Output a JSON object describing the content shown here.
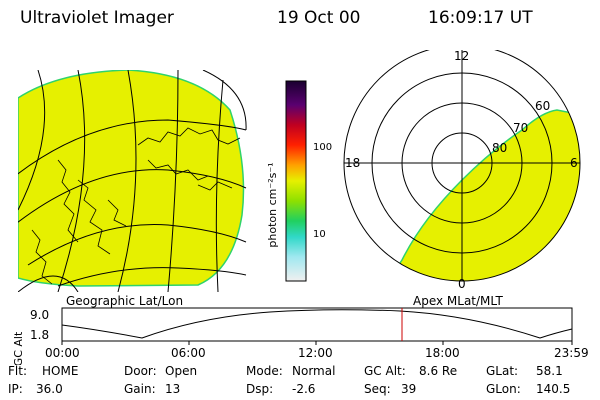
{
  "header": {
    "instrument": "Ultraviolet Imager",
    "date": "19 Oct 00",
    "time": "16:09:17 UT"
  },
  "panels": {
    "left_caption": "Geographic Lat/Lon",
    "right_caption": "Apex MLat/MLT"
  },
  "colorbar": {
    "label": "photon cm⁻²s⁻¹",
    "ticks": [
      "100",
      "10"
    ]
  },
  "polar": {
    "mlt_labels": [
      "12",
      "18",
      "6",
      "0"
    ],
    "lat_labels": [
      "60",
      "70",
      "80"
    ]
  },
  "altitude_plot": {
    "ylabel": "GC Alt",
    "ymax": "9.0",
    "ymin": "1.8",
    "xticks": [
      "00:00",
      "06:00",
      "12:00",
      "18:00",
      "23:59"
    ],
    "marker_time": "16:09"
  },
  "info": {
    "flt_label": "Flt:",
    "flt_value": "HOME",
    "ip_label": "IP:",
    "ip_value": "36.0",
    "door_label": "Door:",
    "door_value": "Open",
    "gain_label": "Gain:",
    "gain_value": "13",
    "mode_label": "Mode:",
    "mode_value": "Normal",
    "dsp_label": "Dsp:",
    "dsp_value": "-2.6",
    "gcalt_label": "GC Alt:",
    "gcalt_value": "8.6 Re",
    "seq_label": "Seq:",
    "seq_value": "39",
    "glat_label": "GLat:",
    "glat_value": "58.1",
    "glon_label": "GLon:",
    "glon_value": "140.5"
  },
  "colors": {
    "fill": "#e6f000",
    "edge": "#2fd36b",
    "marker": "#cc0000"
  }
}
